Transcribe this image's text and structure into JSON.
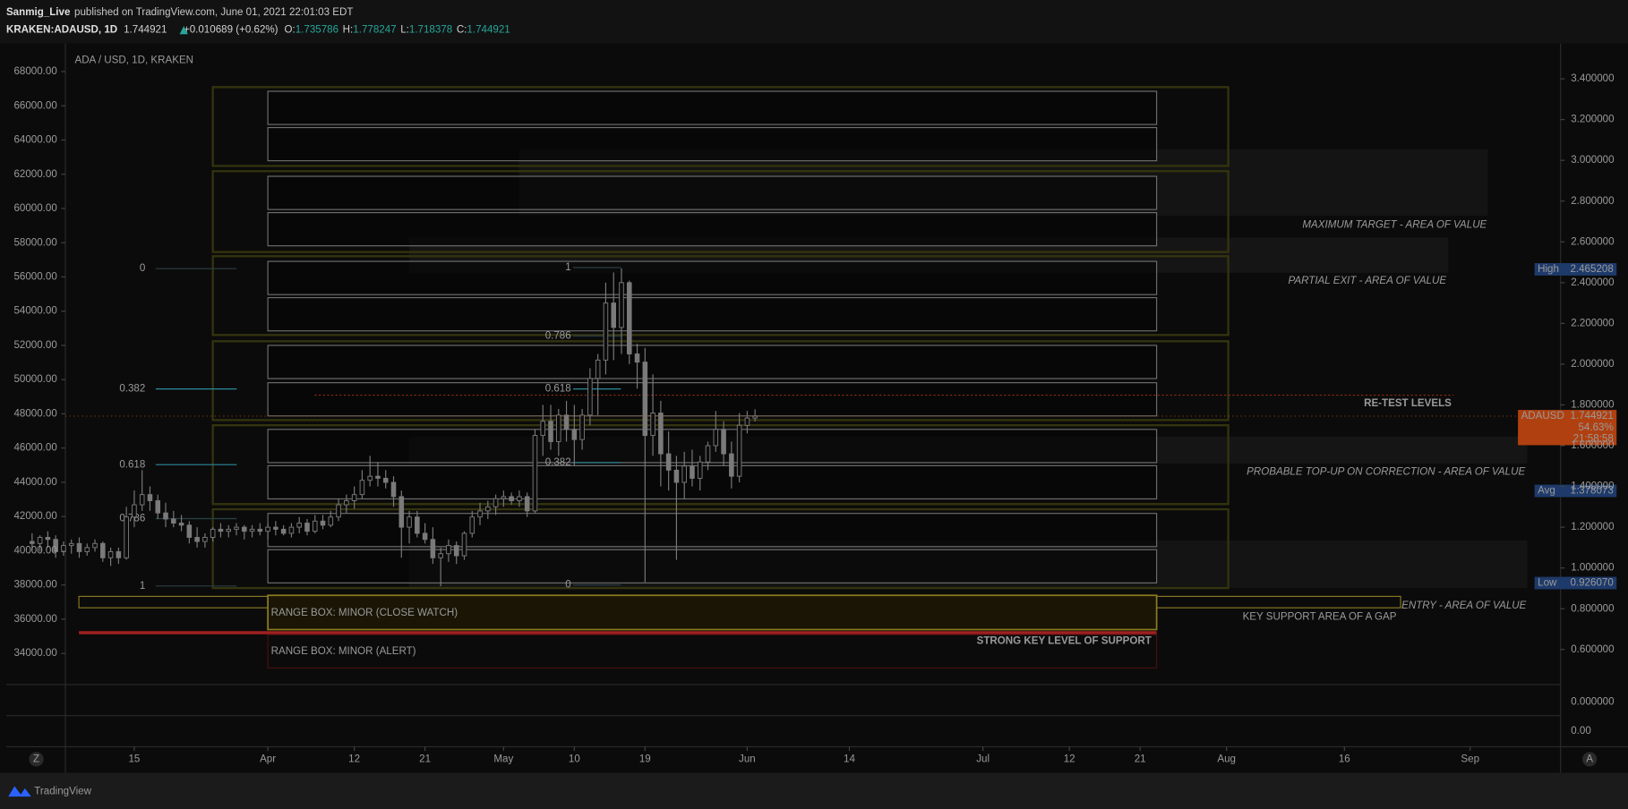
{
  "header": {
    "user": "Sanmig_Live",
    "published": "published on TradingView.com, June 01, 2021 22:01:03 EDT",
    "symbol": "KRAKEN:ADAUSD, 1D",
    "last": "1.744921",
    "change": "+0.010689 (+0.62%)",
    "o_label": "O:",
    "o": "1.735786",
    "h_label": "H:",
    "h": "1.778247",
    "l_label": "L:",
    "l": "1.718378",
    "c_label": "C:",
    "c": "1.744921"
  },
  "chart_data": {
    "type": "candlestick",
    "title": "ADA / USD, 1D, KRAKEN",
    "x": [
      61,
      62,
      63,
      64,
      65,
      66,
      67,
      68,
      69,
      70,
      71,
      72,
      73,
      74,
      75,
      76,
      77,
      78,
      79,
      80,
      81,
      82,
      83,
      84,
      85,
      86,
      87,
      88,
      89,
      90,
      91,
      92,
      93,
      94,
      95,
      96,
      97,
      98,
      99,
      100,
      101,
      102,
      103,
      104,
      105,
      106,
      107,
      108,
      109,
      110,
      111,
      112,
      113,
      114,
      115,
      116,
      117,
      118,
      119,
      120,
      121,
      122,
      123,
      124,
      125,
      126,
      127,
      128,
      129,
      130,
      131,
      132,
      133,
      134,
      135,
      136,
      137,
      138,
      139,
      140,
      141,
      142,
      143,
      144,
      145,
      146,
      147,
      148,
      149,
      150,
      151,
      152,
      153
    ],
    "ohlc": [
      [
        1.13,
        1.17,
        1.09,
        1.12
      ],
      [
        1.12,
        1.16,
        1.08,
        1.15
      ],
      [
        1.15,
        1.18,
        1.1,
        1.14
      ],
      [
        1.14,
        1.16,
        1.05,
        1.08
      ],
      [
        1.08,
        1.13,
        1.06,
        1.11
      ],
      [
        1.11,
        1.14,
        1.07,
        1.12
      ],
      [
        1.12,
        1.15,
        1.05,
        1.08
      ],
      [
        1.08,
        1.12,
        1.06,
        1.1
      ],
      [
        1.1,
        1.14,
        1.08,
        1.12
      ],
      [
        1.12,
        1.13,
        1.03,
        1.05
      ],
      [
        1.05,
        1.1,
        1.01,
        1.08
      ],
      [
        1.08,
        1.1,
        1.02,
        1.05
      ],
      [
        1.05,
        1.3,
        1.04,
        1.25
      ],
      [
        1.25,
        1.38,
        1.2,
        1.31
      ],
      [
        1.31,
        1.48,
        1.28,
        1.36
      ],
      [
        1.36,
        1.4,
        1.28,
        1.33
      ],
      [
        1.33,
        1.36,
        1.24,
        1.27
      ],
      [
        1.27,
        1.32,
        1.2,
        1.24
      ],
      [
        1.24,
        1.28,
        1.2,
        1.22
      ],
      [
        1.22,
        1.26,
        1.18,
        1.21
      ],
      [
        1.21,
        1.23,
        1.12,
        1.15
      ],
      [
        1.15,
        1.2,
        1.1,
        1.13
      ],
      [
        1.13,
        1.17,
        1.1,
        1.15
      ],
      [
        1.15,
        1.2,
        1.13,
        1.19
      ],
      [
        1.19,
        1.22,
        1.15,
        1.18
      ],
      [
        1.18,
        1.21,
        1.15,
        1.19
      ],
      [
        1.19,
        1.22,
        1.16,
        1.2
      ],
      [
        1.2,
        1.21,
        1.14,
        1.18
      ],
      [
        1.18,
        1.21,
        1.15,
        1.19
      ],
      [
        1.19,
        1.22,
        1.16,
        1.18
      ],
      [
        1.18,
        1.22,
        1.14,
        1.2
      ],
      [
        1.2,
        1.23,
        1.16,
        1.19
      ],
      [
        1.19,
        1.21,
        1.16,
        1.17
      ],
      [
        1.17,
        1.22,
        1.15,
        1.2
      ],
      [
        1.2,
        1.25,
        1.17,
        1.22
      ],
      [
        1.22,
        1.24,
        1.16,
        1.18
      ],
      [
        1.18,
        1.26,
        1.17,
        1.23
      ],
      [
        1.23,
        1.26,
        1.19,
        1.21
      ],
      [
        1.21,
        1.28,
        1.2,
        1.25
      ],
      [
        1.25,
        1.34,
        1.23,
        1.31
      ],
      [
        1.31,
        1.36,
        1.27,
        1.33
      ],
      [
        1.33,
        1.4,
        1.29,
        1.36
      ],
      [
        1.36,
        1.48,
        1.34,
        1.43
      ],
      [
        1.43,
        1.55,
        1.4,
        1.45
      ],
      [
        1.45,
        1.52,
        1.4,
        1.44
      ],
      [
        1.44,
        1.48,
        1.39,
        1.42
      ],
      [
        1.42,
        1.45,
        1.3,
        1.35
      ],
      [
        1.35,
        1.38,
        1.05,
        1.2
      ],
      [
        1.2,
        1.28,
        1.12,
        1.25
      ],
      [
        1.25,
        1.28,
        1.15,
        1.17
      ],
      [
        1.17,
        1.22,
        1.12,
        1.14
      ],
      [
        1.14,
        1.2,
        1.02,
        1.05
      ],
      [
        1.05,
        1.1,
        0.91,
        1.07
      ],
      [
        1.07,
        1.14,
        1.03,
        1.11
      ],
      [
        1.11,
        1.13,
        1.02,
        1.06
      ],
      [
        1.06,
        1.18,
        1.04,
        1.17
      ],
      [
        1.17,
        1.28,
        1.15,
        1.25
      ],
      [
        1.25,
        1.32,
        1.21,
        1.28
      ],
      [
        1.28,
        1.33,
        1.24,
        1.3
      ],
      [
        1.3,
        1.36,
        1.26,
        1.34
      ],
      [
        1.34,
        1.38,
        1.3,
        1.35
      ],
      [
        1.35,
        1.37,
        1.31,
        1.33
      ],
      [
        1.33,
        1.38,
        1.3,
        1.35
      ],
      [
        1.35,
        1.37,
        1.25,
        1.28
      ],
      [
        1.28,
        1.68,
        1.27,
        1.65
      ],
      [
        1.65,
        1.8,
        1.55,
        1.72
      ],
      [
        1.72,
        1.8,
        1.58,
        1.62
      ],
      [
        1.62,
        1.78,
        1.55,
        1.75
      ],
      [
        1.75,
        1.82,
        1.62,
        1.68
      ],
      [
        1.68,
        1.8,
        1.5,
        1.63
      ],
      [
        1.63,
        1.78,
        1.58,
        1.75
      ],
      [
        1.75,
        1.98,
        1.7,
        1.93
      ],
      [
        1.93,
        2.05,
        1.75,
        2.02
      ],
      [
        2.02,
        2.4,
        1.95,
        2.3
      ],
      [
        2.3,
        2.45,
        2.02,
        2.18
      ],
      [
        2.18,
        2.47,
        2.05,
        2.4
      ],
      [
        2.4,
        2.41,
        2.0,
        2.05
      ],
      [
        2.05,
        2.1,
        1.88,
        2.01
      ],
      [
        2.01,
        2.08,
        0.93,
        1.65
      ],
      [
        1.65,
        1.95,
        1.55,
        1.76
      ],
      [
        1.76,
        1.82,
        1.4,
        1.56
      ],
      [
        1.56,
        1.67,
        1.38,
        1.48
      ],
      [
        1.48,
        1.55,
        1.04,
        1.42
      ],
      [
        1.42,
        1.57,
        1.34,
        1.5
      ],
      [
        1.5,
        1.58,
        1.4,
        1.44
      ],
      [
        1.44,
        1.55,
        1.38,
        1.52
      ],
      [
        1.52,
        1.62,
        1.48,
        1.6
      ],
      [
        1.6,
        1.77,
        1.57,
        1.68
      ],
      [
        1.68,
        1.72,
        1.5,
        1.56
      ],
      [
        1.56,
        1.62,
        1.39,
        1.45
      ],
      [
        1.45,
        1.76,
        1.42,
        1.7
      ],
      [
        1.7,
        1.77,
        1.66,
        1.735786
      ],
      [
        1.735786,
        1.778247,
        1.718378,
        1.744921
      ]
    ],
    "color": "#7a7a7a",
    "xlim": [
      65.24,
      255.5
    ],
    "xticks": [
      {
        "value": 74,
        "label": "15"
      },
      {
        "value": 91,
        "label": "Apr"
      },
      {
        "value": 102,
        "label": "12"
      },
      {
        "value": 111,
        "label": "21"
      },
      {
        "value": 121,
        "label": "May"
      },
      {
        "value": 130,
        "label": "10"
      },
      {
        "value": 139,
        "label": "19"
      },
      {
        "value": 152,
        "label": "Jun"
      },
      {
        "value": 165,
        "label": "14"
      },
      {
        "value": 182,
        "label": "Jul"
      },
      {
        "value": 193,
        "label": "12"
      },
      {
        "value": 202,
        "label": "21"
      },
      {
        "value": 213,
        "label": "Aug"
      },
      {
        "value": 228,
        "label": "16"
      },
      {
        "value": 244,
        "label": "Sep"
      }
    ],
    "ylim": [
      0.428,
      3.573
    ],
    "yticks": [
      {
        "value": 3.4,
        "label": "3.400000"
      },
      {
        "value": 3.2,
        "label": "3.200000"
      },
      {
        "value": 3.0,
        "label": "3.000000"
      },
      {
        "value": 2.8,
        "label": "2.800000"
      },
      {
        "value": 2.6,
        "label": "2.600000"
      },
      {
        "value": 2.4,
        "label": "2.400000"
      },
      {
        "value": 2.2,
        "label": "2.200000"
      },
      {
        "value": 2.0,
        "label": "2.000000"
      },
      {
        "value": 1.8,
        "label": "1.800000"
      },
      {
        "value": 1.6,
        "label": "1.600000"
      },
      {
        "value": 1.4,
        "label": "1.400000"
      },
      {
        "value": 1.2,
        "label": "1.200000"
      },
      {
        "value": 1.0,
        "label": "1.000000"
      },
      {
        "value": 0.8,
        "label": "0.800000"
      },
      {
        "value": 0.6,
        "label": "0.600000"
      }
    ],
    "y2lim": [
      32182,
      69636
    ],
    "y2ticks": [
      {
        "value": 68000,
        "label": "68000.00"
      },
      {
        "value": 66000,
        "label": "66000.00"
      },
      {
        "value": 64000,
        "label": "64000.00"
      },
      {
        "value": 62000,
        "label": "62000.00"
      },
      {
        "value": 60000,
        "label": "60000.00"
      },
      {
        "value": 58000,
        "label": "58000.00"
      },
      {
        "value": 56000,
        "label": "56000.00"
      },
      {
        "value": 54000,
        "label": "54000.00"
      },
      {
        "value": 52000,
        "label": "52000.00"
      },
      {
        "value": 50000,
        "label": "50000.00"
      },
      {
        "value": 48000,
        "label": "48000.00"
      },
      {
        "value": 46000,
        "label": "46000.00"
      },
      {
        "value": 44000,
        "label": "44000.00"
      },
      {
        "value": 42000,
        "label": "42000.00"
      },
      {
        "value": 40000,
        "label": "40000.00"
      },
      {
        "value": 38000,
        "label": "38000.00"
      },
      {
        "value": 36000,
        "label": "36000.00"
      },
      {
        "value": 34000,
        "label": "34000.00"
      }
    ],
    "annotations": [
      "MAXIMUM TARGET - AREA OF VALUE",
      "PARTIAL EXIT - AREA OF VALUE",
      "RE-TEST LEVELS",
      "PROBABLE TOP-UP ON CORRECTION - AREA OF VALUE",
      "ENTRY - AREA OF VALUE",
      "KEY SUPPORT AREA OF A GAP",
      "STRONG KEY LEVEL OF SUPPORT",
      "RANGE BOX: MINOR  (CLOSE WATCH)",
      "RANGE BOX: MINOR (ALERT)"
    ],
    "fib_left": [
      0,
      0.382,
      0.618,
      0.786,
      1
    ],
    "fib_right": [
      1,
      0.786,
      0.618,
      0.382,
      0
    ],
    "price_tags": [
      {
        "name": "High",
        "value": 2.465208
      },
      {
        "name": "ADAUSD",
        "value": 1.744921,
        "extra": [
          "54.63%",
          "21:58:58"
        ]
      },
      {
        "name": "Avg",
        "value": 1.378073
      },
      {
        "name": "Low",
        "value": 0.92607,
        "label": "0.926070"
      }
    ],
    "pane_ticks": [
      "0.000000",
      "0.00"
    ]
  },
  "footer": {
    "brand": "TradingView",
    "left_button": "Z",
    "right_button": "A"
  }
}
